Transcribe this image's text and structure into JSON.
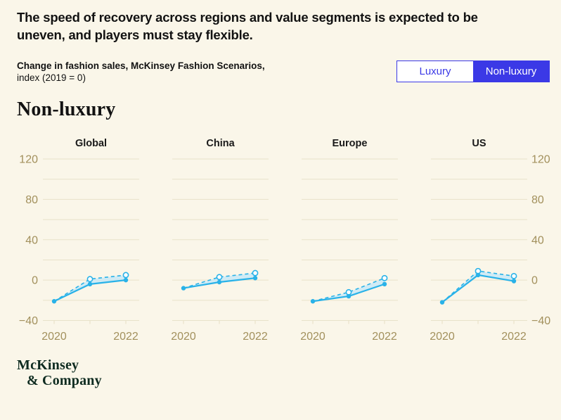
{
  "page": {
    "title": "The speed of recovery across regions and value segments is expected to be uneven, and players must stay flexible.",
    "subtitle_bold": "Change in fashion sales, McKinsey Fashion Scenarios,",
    "subtitle_regular": "index (2019 = 0)",
    "section_heading": "Non-luxury",
    "logo_line1": "McKinsey",
    "logo_line2": "& Company"
  },
  "toggle": {
    "options": [
      {
        "label": "Luxury",
        "selected": false
      },
      {
        "label": "Non-luxury",
        "selected": true
      }
    ]
  },
  "colors": {
    "accent_blue": "#3B39E6",
    "line_cyan": "#29B2E8",
    "area_fill": "#C6E9F8",
    "grid": "#E8E2C9",
    "axis_text": "#A2905C",
    "text_dark": "#121212",
    "logo": "#0E2B20",
    "background": "#FAF6E9"
  },
  "chart_data": {
    "type": "line",
    "title": "Change in fashion sales, McKinsey Fashion Scenarios, index (2019 = 0)",
    "segment_shown": "Non-luxury",
    "x": [
      2020,
      2021,
      2022
    ],
    "x_tick_labels_shown": [
      "2020",
      "2022"
    ],
    "ylim": [
      -40,
      120
    ],
    "y_grid_step": 20,
    "y_ticks_labeled": [
      120,
      80,
      40,
      0,
      -40
    ],
    "grid": true,
    "legend_position": "none",
    "series_styles": [
      {
        "key": "solid",
        "style": "solid line, filled round markers"
      },
      {
        "key": "dashed",
        "style": "dashed line, open round markers, shaded band down to solid series"
      }
    ],
    "panels": [
      {
        "title": "Global",
        "solid": [
          -21,
          -4,
          0
        ],
        "dashed": [
          -21,
          1,
          5
        ]
      },
      {
        "title": "China",
        "solid": [
          -8,
          -2,
          2
        ],
        "dashed": [
          -8,
          3,
          7
        ]
      },
      {
        "title": "Europe",
        "solid": [
          -21,
          -16,
          -4
        ],
        "dashed": [
          -21,
          -12,
          2
        ]
      },
      {
        "title": "US",
        "solid": [
          -22,
          5,
          -1
        ],
        "dashed": [
          -22,
          9,
          4
        ]
      }
    ]
  }
}
